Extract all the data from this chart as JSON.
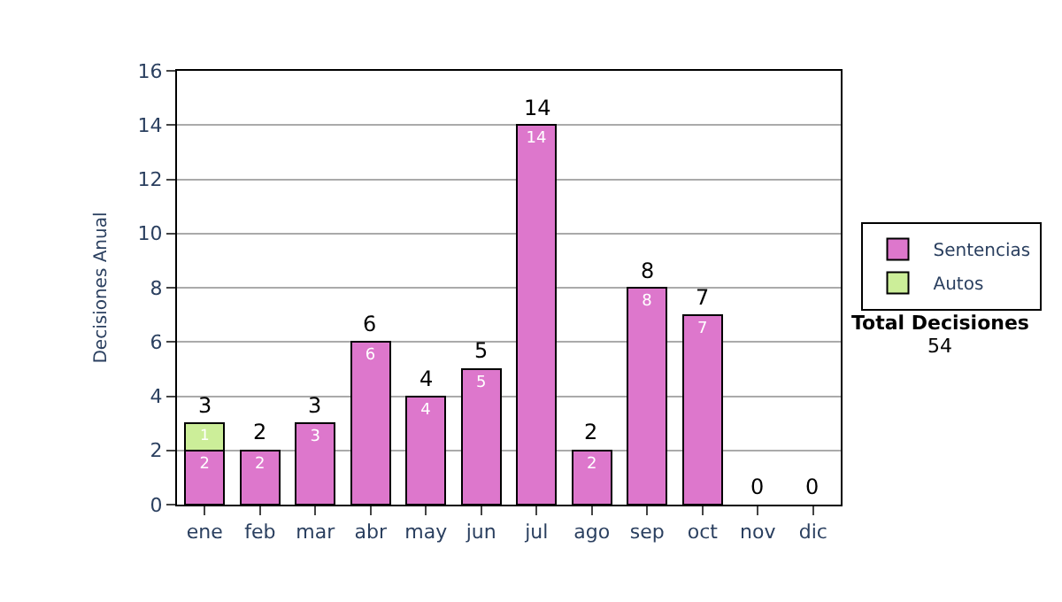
{
  "chart_data": {
    "type": "bar",
    "stacked": true,
    "ylabel": "Decisiones Anual",
    "categories": [
      "ene",
      "feb",
      "mar",
      "abr",
      "may",
      "jun",
      "jul",
      "ago",
      "sep",
      "oct",
      "nov",
      "dic"
    ],
    "series": [
      {
        "name": "Sentencias",
        "color": "#dd77cc",
        "values": [
          2,
          2,
          3,
          6,
          4,
          5,
          14,
          2,
          8,
          7,
          0,
          0
        ],
        "value_labels": [
          "2",
          "2",
          "3",
          "6",
          "4",
          "5",
          "14",
          "2",
          "8",
          "7",
          null,
          null
        ]
      },
      {
        "name": "Autos",
        "color": "#ccee99",
        "values": [
          1,
          0,
          0,
          0,
          0,
          0,
          0,
          0,
          0,
          0,
          0,
          0
        ],
        "value_labels": [
          "1",
          null,
          null,
          null,
          null,
          null,
          null,
          null,
          null,
          null,
          null,
          null
        ]
      }
    ],
    "totals": [
      "3",
      "2",
      "3",
      "6",
      "4",
      "5",
      "14",
      "2",
      "8",
      "7",
      "0",
      "0"
    ],
    "ylim": [
      0,
      16
    ],
    "yticks": [
      0,
      2,
      4,
      6,
      8,
      10,
      12,
      14,
      16
    ],
    "grid": "y",
    "legend": "right",
    "annotations": [
      "Total Decisiones",
      "54"
    ]
  }
}
